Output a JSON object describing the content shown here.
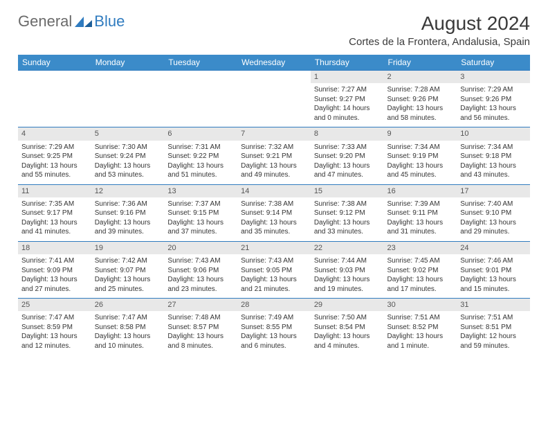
{
  "brand": {
    "text1": "General",
    "text2": "Blue"
  },
  "title": "August 2024",
  "location": "Cortes de la Frontera, Andalusia, Spain",
  "colors": {
    "header_bg": "#3b8bc9",
    "header_fg": "#ffffff",
    "row_divider": "#2f7bbf",
    "daynum_bg": "#e8e8e8",
    "logo_blue": "#2f7bbf",
    "logo_gray": "#6a6a6a"
  },
  "weekdays": [
    "Sunday",
    "Monday",
    "Tuesday",
    "Wednesday",
    "Thursday",
    "Friday",
    "Saturday"
  ],
  "weeks": [
    [
      {
        "empty": true
      },
      {
        "empty": true
      },
      {
        "empty": true
      },
      {
        "empty": true
      },
      {
        "num": "1",
        "sunrise": "Sunrise: 7:27 AM",
        "sunset": "Sunset: 9:27 PM",
        "daylight": "Daylight: 14 hours and 0 minutes."
      },
      {
        "num": "2",
        "sunrise": "Sunrise: 7:28 AM",
        "sunset": "Sunset: 9:26 PM",
        "daylight": "Daylight: 13 hours and 58 minutes."
      },
      {
        "num": "3",
        "sunrise": "Sunrise: 7:29 AM",
        "sunset": "Sunset: 9:26 PM",
        "daylight": "Daylight: 13 hours and 56 minutes."
      }
    ],
    [
      {
        "num": "4",
        "sunrise": "Sunrise: 7:29 AM",
        "sunset": "Sunset: 9:25 PM",
        "daylight": "Daylight: 13 hours and 55 minutes."
      },
      {
        "num": "5",
        "sunrise": "Sunrise: 7:30 AM",
        "sunset": "Sunset: 9:24 PM",
        "daylight": "Daylight: 13 hours and 53 minutes."
      },
      {
        "num": "6",
        "sunrise": "Sunrise: 7:31 AM",
        "sunset": "Sunset: 9:22 PM",
        "daylight": "Daylight: 13 hours and 51 minutes."
      },
      {
        "num": "7",
        "sunrise": "Sunrise: 7:32 AM",
        "sunset": "Sunset: 9:21 PM",
        "daylight": "Daylight: 13 hours and 49 minutes."
      },
      {
        "num": "8",
        "sunrise": "Sunrise: 7:33 AM",
        "sunset": "Sunset: 9:20 PM",
        "daylight": "Daylight: 13 hours and 47 minutes."
      },
      {
        "num": "9",
        "sunrise": "Sunrise: 7:34 AM",
        "sunset": "Sunset: 9:19 PM",
        "daylight": "Daylight: 13 hours and 45 minutes."
      },
      {
        "num": "10",
        "sunrise": "Sunrise: 7:34 AM",
        "sunset": "Sunset: 9:18 PM",
        "daylight": "Daylight: 13 hours and 43 minutes."
      }
    ],
    [
      {
        "num": "11",
        "sunrise": "Sunrise: 7:35 AM",
        "sunset": "Sunset: 9:17 PM",
        "daylight": "Daylight: 13 hours and 41 minutes."
      },
      {
        "num": "12",
        "sunrise": "Sunrise: 7:36 AM",
        "sunset": "Sunset: 9:16 PM",
        "daylight": "Daylight: 13 hours and 39 minutes."
      },
      {
        "num": "13",
        "sunrise": "Sunrise: 7:37 AM",
        "sunset": "Sunset: 9:15 PM",
        "daylight": "Daylight: 13 hours and 37 minutes."
      },
      {
        "num": "14",
        "sunrise": "Sunrise: 7:38 AM",
        "sunset": "Sunset: 9:14 PM",
        "daylight": "Daylight: 13 hours and 35 minutes."
      },
      {
        "num": "15",
        "sunrise": "Sunrise: 7:38 AM",
        "sunset": "Sunset: 9:12 PM",
        "daylight": "Daylight: 13 hours and 33 minutes."
      },
      {
        "num": "16",
        "sunrise": "Sunrise: 7:39 AM",
        "sunset": "Sunset: 9:11 PM",
        "daylight": "Daylight: 13 hours and 31 minutes."
      },
      {
        "num": "17",
        "sunrise": "Sunrise: 7:40 AM",
        "sunset": "Sunset: 9:10 PM",
        "daylight": "Daylight: 13 hours and 29 minutes."
      }
    ],
    [
      {
        "num": "18",
        "sunrise": "Sunrise: 7:41 AM",
        "sunset": "Sunset: 9:09 PM",
        "daylight": "Daylight: 13 hours and 27 minutes."
      },
      {
        "num": "19",
        "sunrise": "Sunrise: 7:42 AM",
        "sunset": "Sunset: 9:07 PM",
        "daylight": "Daylight: 13 hours and 25 minutes."
      },
      {
        "num": "20",
        "sunrise": "Sunrise: 7:43 AM",
        "sunset": "Sunset: 9:06 PM",
        "daylight": "Daylight: 13 hours and 23 minutes."
      },
      {
        "num": "21",
        "sunrise": "Sunrise: 7:43 AM",
        "sunset": "Sunset: 9:05 PM",
        "daylight": "Daylight: 13 hours and 21 minutes."
      },
      {
        "num": "22",
        "sunrise": "Sunrise: 7:44 AM",
        "sunset": "Sunset: 9:03 PM",
        "daylight": "Daylight: 13 hours and 19 minutes."
      },
      {
        "num": "23",
        "sunrise": "Sunrise: 7:45 AM",
        "sunset": "Sunset: 9:02 PM",
        "daylight": "Daylight: 13 hours and 17 minutes."
      },
      {
        "num": "24",
        "sunrise": "Sunrise: 7:46 AM",
        "sunset": "Sunset: 9:01 PM",
        "daylight": "Daylight: 13 hours and 15 minutes."
      }
    ],
    [
      {
        "num": "25",
        "sunrise": "Sunrise: 7:47 AM",
        "sunset": "Sunset: 8:59 PM",
        "daylight": "Daylight: 13 hours and 12 minutes."
      },
      {
        "num": "26",
        "sunrise": "Sunrise: 7:47 AM",
        "sunset": "Sunset: 8:58 PM",
        "daylight": "Daylight: 13 hours and 10 minutes."
      },
      {
        "num": "27",
        "sunrise": "Sunrise: 7:48 AM",
        "sunset": "Sunset: 8:57 PM",
        "daylight": "Daylight: 13 hours and 8 minutes."
      },
      {
        "num": "28",
        "sunrise": "Sunrise: 7:49 AM",
        "sunset": "Sunset: 8:55 PM",
        "daylight": "Daylight: 13 hours and 6 minutes."
      },
      {
        "num": "29",
        "sunrise": "Sunrise: 7:50 AM",
        "sunset": "Sunset: 8:54 PM",
        "daylight": "Daylight: 13 hours and 4 minutes."
      },
      {
        "num": "30",
        "sunrise": "Sunrise: 7:51 AM",
        "sunset": "Sunset: 8:52 PM",
        "daylight": "Daylight: 13 hours and 1 minute."
      },
      {
        "num": "31",
        "sunrise": "Sunrise: 7:51 AM",
        "sunset": "Sunset: 8:51 PM",
        "daylight": "Daylight: 12 hours and 59 minutes."
      }
    ]
  ]
}
